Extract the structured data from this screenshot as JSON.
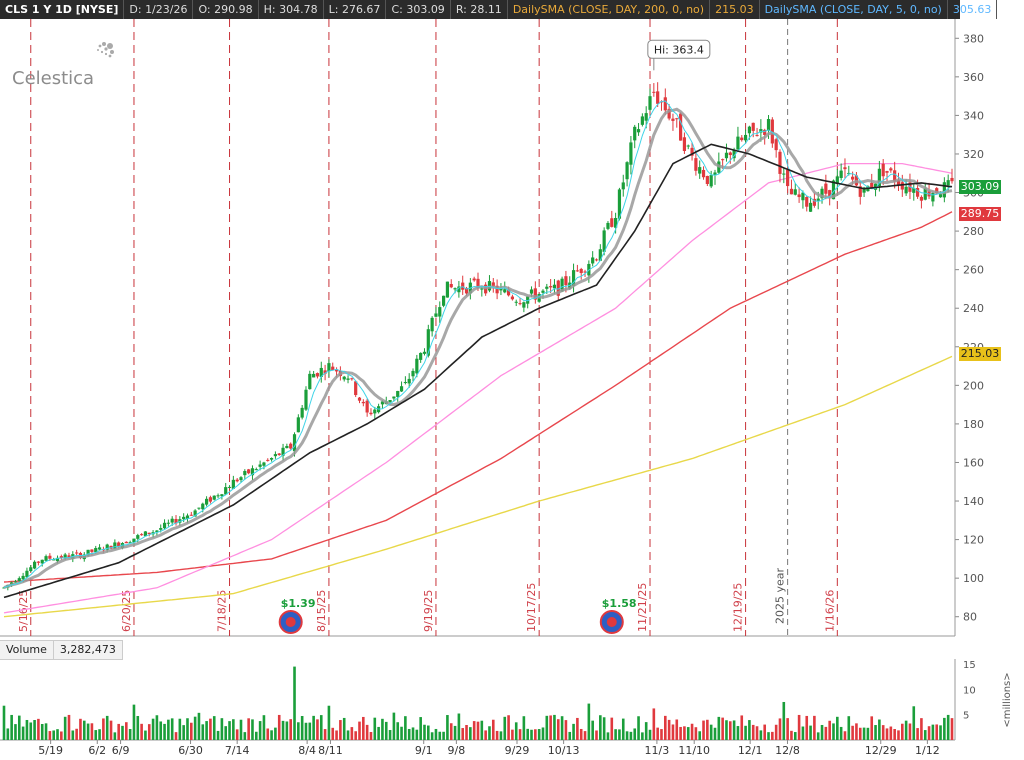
{
  "header": {
    "symbol": "CLS 1 Y 1D [NYSE]",
    "date": "D: 1/23/26",
    "open": "O: 290.98",
    "high": "H: 304.78",
    "low": "L: 276.67",
    "close": "C: 303.09",
    "range": "R: 28.11",
    "sma200_label": "DailySMA (CLOSE, DAY, 200, 0, no)",
    "sma200_value": "215.03",
    "sma5_label": "DailySMA (CLOSE, DAY, 5, 0, no)",
    "sma5_value": "305.63"
  },
  "logo_text": "Celestica",
  "volume_header": {
    "label": "Volume",
    "value": "3,282,473"
  },
  "colors": {
    "up": "#1a9e3a",
    "down": "#e0393e",
    "sma5": "#3fd4e8",
    "sma10": "#999999",
    "sma20": "#222222",
    "sma50": "#ff8fe0",
    "sma100": "#e8474d",
    "sma200": "#e8d84a",
    "last_price_tag": "#1a9e3a",
    "sma100_tag": "#e0393e",
    "sma200_tag": "#e8c11a"
  },
  "chart_data": [
    {
      "type": "candlestick",
      "title": "",
      "ylim": [
        70,
        390
      ],
      "y_ticks": [
        80,
        100,
        120,
        140,
        160,
        180,
        200,
        220,
        240,
        260,
        280,
        300,
        320,
        340,
        360,
        380
      ],
      "x_date_labels": [
        "5/19",
        "6/2",
        "6/9",
        "6/30",
        "7/14",
        "8/4",
        "8/11",
        "9/1",
        "9/8",
        "9/29",
        "10/13",
        "11/3",
        "11/10",
        "12/1",
        "12/8",
        "12/29",
        "1/12"
      ],
      "event_markers": [
        "5/16/25",
        "6/20/25",
        "7/18/25",
        "8/15/25",
        "9/19/25",
        "10/17/25",
        "11/21/25",
        "12/19/25",
        "1/16/26"
      ],
      "year_marker": "2025 year",
      "dividend_labels": [
        "$1.39",
        "$1.58"
      ],
      "annotations": [
        {
          "label": "Hi: 363.4",
          "value": 363.4
        }
      ],
      "price_tags": [
        {
          "label": "303.09",
          "value": 303.09,
          "color_key": "last_price_tag"
        },
        {
          "label": "289.75",
          "value": 289.75,
          "color_key": "sma100_tag"
        },
        {
          "label": "215.03",
          "value": 215.03,
          "color_key": "sma200_tag"
        }
      ],
      "price_anchors": [
        [
          0,
          95
        ],
        [
          10,
          110
        ],
        [
          20,
          112
        ],
        [
          30,
          118
        ],
        [
          40,
          125
        ],
        [
          50,
          135
        ],
        [
          60,
          150
        ],
        [
          70,
          162
        ],
        [
          75,
          168
        ],
        [
          80,
          205
        ],
        [
          85,
          210
        ],
        [
          90,
          205
        ],
        [
          95,
          185
        ],
        [
          100,
          192
        ],
        [
          105,
          200
        ],
        [
          110,
          220
        ],
        [
          115,
          250
        ],
        [
          125,
          252
        ],
        [
          135,
          245
        ],
        [
          145,
          250
        ],
        [
          155,
          268
        ],
        [
          160,
          290
        ],
        [
          165,
          330
        ],
        [
          170,
          352
        ],
        [
          175,
          338
        ],
        [
          180,
          318
        ],
        [
          185,
          305
        ],
        [
          190,
          322
        ],
        [
          195,
          330
        ],
        [
          200,
          335
        ],
        [
          205,
          300
        ],
        [
          210,
          295
        ],
        [
          215,
          300
        ],
        [
          220,
          310
        ],
        [
          225,
          300
        ],
        [
          230,
          312
        ],
        [
          235,
          305
        ],
        [
          240,
          300
        ],
        [
          248,
          303
        ]
      ],
      "sma_anchors": {
        "sma20": [
          [
            0,
            90
          ],
          [
            30,
            108
          ],
          [
            60,
            138
          ],
          [
            80,
            165
          ],
          [
            95,
            180
          ],
          [
            110,
            198
          ],
          [
            125,
            225
          ],
          [
            140,
            240
          ],
          [
            155,
            252
          ],
          [
            165,
            280
          ],
          [
            175,
            315
          ],
          [
            185,
            325
          ],
          [
            195,
            320
          ],
          [
            210,
            308
          ],
          [
            225,
            302
          ],
          [
            240,
            305
          ],
          [
            248,
            303
          ]
        ],
        "sma50": [
          [
            0,
            82
          ],
          [
            40,
            95
          ],
          [
            70,
            120
          ],
          [
            100,
            160
          ],
          [
            130,
            205
          ],
          [
            160,
            240
          ],
          [
            180,
            275
          ],
          [
            200,
            305
          ],
          [
            220,
            315
          ],
          [
            235,
            315
          ],
          [
            248,
            310
          ]
        ],
        "sma100": [
          [
            0,
            98
          ],
          [
            40,
            103
          ],
          [
            70,
            110
          ],
          [
            100,
            130
          ],
          [
            130,
            162
          ],
          [
            160,
            200
          ],
          [
            190,
            240
          ],
          [
            220,
            268
          ],
          [
            240,
            282
          ],
          [
            248,
            290
          ]
        ],
        "sma200": [
          [
            0,
            80
          ],
          [
            60,
            92
          ],
          [
            100,
            115
          ],
          [
            140,
            140
          ],
          [
            180,
            162
          ],
          [
            220,
            190
          ],
          [
            248,
            215
          ]
        ]
      }
    },
    {
      "type": "bar",
      "title": "Volume",
      "ylabel": "<millions>",
      "ylim": [
        0,
        16
      ],
      "y_ticks": [
        5,
        10,
        15
      ],
      "values_note": "daily volume in millions",
      "typical_range": [
        1.5,
        5
      ],
      "spike_index": 76,
      "spike_value": 14.5
    }
  ]
}
